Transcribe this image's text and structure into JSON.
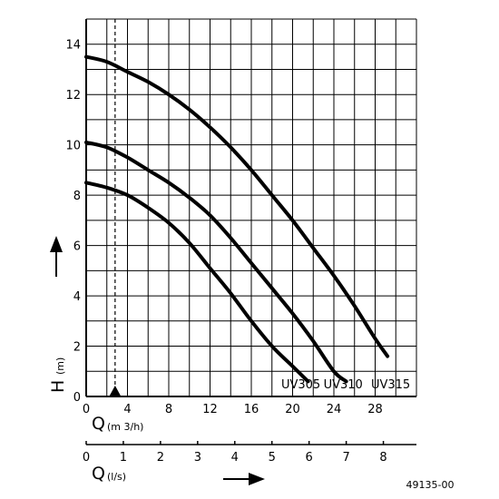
{
  "chart_data": {
    "type": "line",
    "title": "",
    "ylabel": {
      "symbol": "H",
      "unit": "(m)"
    },
    "xlabel": {
      "symbol": "Q",
      "unit": "(m 3/h)"
    },
    "xlabel2": {
      "symbol": "Q",
      "unit": "(l/s)"
    },
    "xlim": [
      0,
      32
    ],
    "ylim": [
      0,
      15
    ],
    "x_ticks": [
      0,
      4,
      8,
      12,
      16,
      20,
      24,
      28
    ],
    "y_ticks": [
      0,
      2,
      4,
      6,
      8,
      10,
      12,
      14
    ],
    "x2lim": [
      0,
      8.89
    ],
    "x2_ticks": [
      0,
      1,
      2,
      3,
      4,
      5,
      6,
      7,
      8
    ],
    "grid": true,
    "marker_x": 2.8,
    "series": [
      {
        "name": "UV305",
        "x": [
          0,
          2,
          4,
          6,
          8,
          10,
          12,
          14,
          16,
          18,
          20,
          21.5
        ],
        "y": [
          8.5,
          8.3,
          8.0,
          7.5,
          6.9,
          6.1,
          5.1,
          4.1,
          3.0,
          2.0,
          1.2,
          0.6
        ]
      },
      {
        "name": "UV310",
        "x": [
          0,
          2,
          4,
          6,
          8,
          10,
          12,
          14,
          16,
          18,
          20,
          22,
          24,
          25.2
        ],
        "y": [
          10.1,
          9.9,
          9.5,
          9.0,
          8.5,
          7.9,
          7.2,
          6.3,
          5.3,
          4.3,
          3.3,
          2.2,
          1.0,
          0.6
        ]
      },
      {
        "name": "UV315",
        "x": [
          0,
          2,
          4,
          6,
          8,
          10,
          12,
          14,
          16,
          18,
          20,
          22,
          24,
          26,
          28,
          29.2
        ],
        "y": [
          13.5,
          13.3,
          12.9,
          12.5,
          12.0,
          11.4,
          10.7,
          9.9,
          9.0,
          8.0,
          7.0,
          5.9,
          4.8,
          3.6,
          2.3,
          1.6
        ]
      }
    ],
    "curve_label_x": [
      20.8,
      24.9,
      29.5
    ],
    "reference": "49135-00"
  }
}
